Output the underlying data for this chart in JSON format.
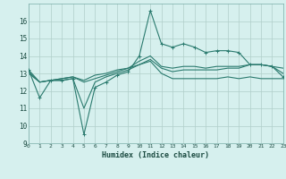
{
  "xlabel": "Humidex (Indice chaleur)",
  "bg_color": "#d6f0ee",
  "grid_color": "#b0ceca",
  "line_color": "#2a7a6e",
  "x_values": [
    0,
    1,
    2,
    3,
    4,
    5,
    6,
    7,
    8,
    9,
    10,
    11,
    12,
    13,
    14,
    15,
    16,
    17,
    18,
    19,
    20,
    21,
    22,
    23
  ],
  "line1": [
    13.2,
    11.6,
    12.6,
    12.6,
    12.7,
    9.5,
    12.2,
    12.5,
    12.9,
    13.1,
    14.0,
    16.6,
    14.7,
    14.5,
    14.7,
    14.5,
    14.2,
    14.3,
    14.3,
    14.2,
    13.5,
    13.5,
    13.4,
    12.8
  ],
  "line2": [
    13.2,
    12.5,
    12.6,
    12.6,
    12.7,
    11.0,
    12.5,
    12.8,
    13.0,
    13.2,
    13.5,
    13.7,
    13.0,
    12.7,
    12.7,
    12.7,
    12.7,
    12.7,
    12.8,
    12.7,
    12.8,
    12.7,
    12.7,
    12.7
  ],
  "line3": [
    13.0,
    12.5,
    12.6,
    12.7,
    12.8,
    12.5,
    12.7,
    12.9,
    13.1,
    13.3,
    13.5,
    13.8,
    13.3,
    13.1,
    13.2,
    13.2,
    13.2,
    13.2,
    13.3,
    13.3,
    13.5,
    13.5,
    13.4,
    13.3
  ],
  "line4": [
    13.1,
    12.5,
    12.6,
    12.7,
    12.8,
    12.6,
    12.9,
    13.0,
    13.2,
    13.3,
    13.7,
    14.0,
    13.4,
    13.3,
    13.4,
    13.4,
    13.3,
    13.4,
    13.4,
    13.4,
    13.5,
    13.5,
    13.4,
    13.0
  ],
  "ylim": [
    9,
    17
  ],
  "yticks": [
    9,
    10,
    11,
    12,
    13,
    14,
    15,
    16
  ],
  "xticks": [
    0,
    1,
    2,
    3,
    4,
    5,
    6,
    7,
    8,
    9,
    10,
    11,
    12,
    13,
    14,
    15,
    16,
    17,
    18,
    19,
    20,
    21,
    22,
    23
  ]
}
